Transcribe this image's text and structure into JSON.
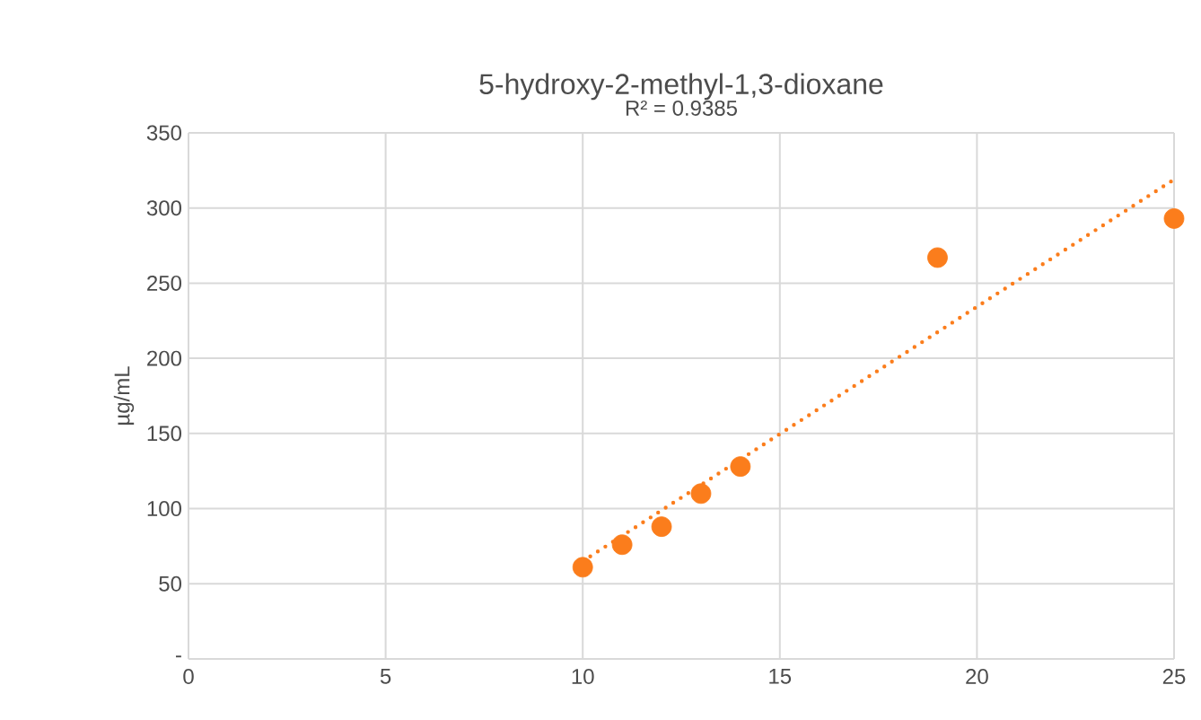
{
  "chart_data": {
    "type": "scatter",
    "title": "5-hydroxy-2-methyl-1,3-dioxane",
    "subtitle": "R² = 0.9385",
    "ylabel": "µg/mL",
    "x": [
      10,
      11,
      12,
      13,
      14,
      19,
      25
    ],
    "series": [
      {
        "color": "#fb7d1c",
        "marker": "circle",
        "values": [
          61,
          76,
          88,
          110,
          128,
          267,
          293
        ]
      },
      {
        "type": "line",
        "color": "#fb7d1c",
        "line_style": "dotted",
        "marker": "none",
        "x": [
          10,
          25
        ],
        "values": [
          65,
          319
        ]
      }
    ],
    "xlim": [
      0,
      25
    ],
    "xticks": [
      0,
      5,
      10,
      15,
      20,
      25
    ],
    "ylim": [
      0,
      350
    ],
    "yticks": [
      {
        "value": 0,
        "label": "-"
      },
      50,
      100,
      150,
      200,
      250,
      300,
      350
    ],
    "grid": true
  }
}
